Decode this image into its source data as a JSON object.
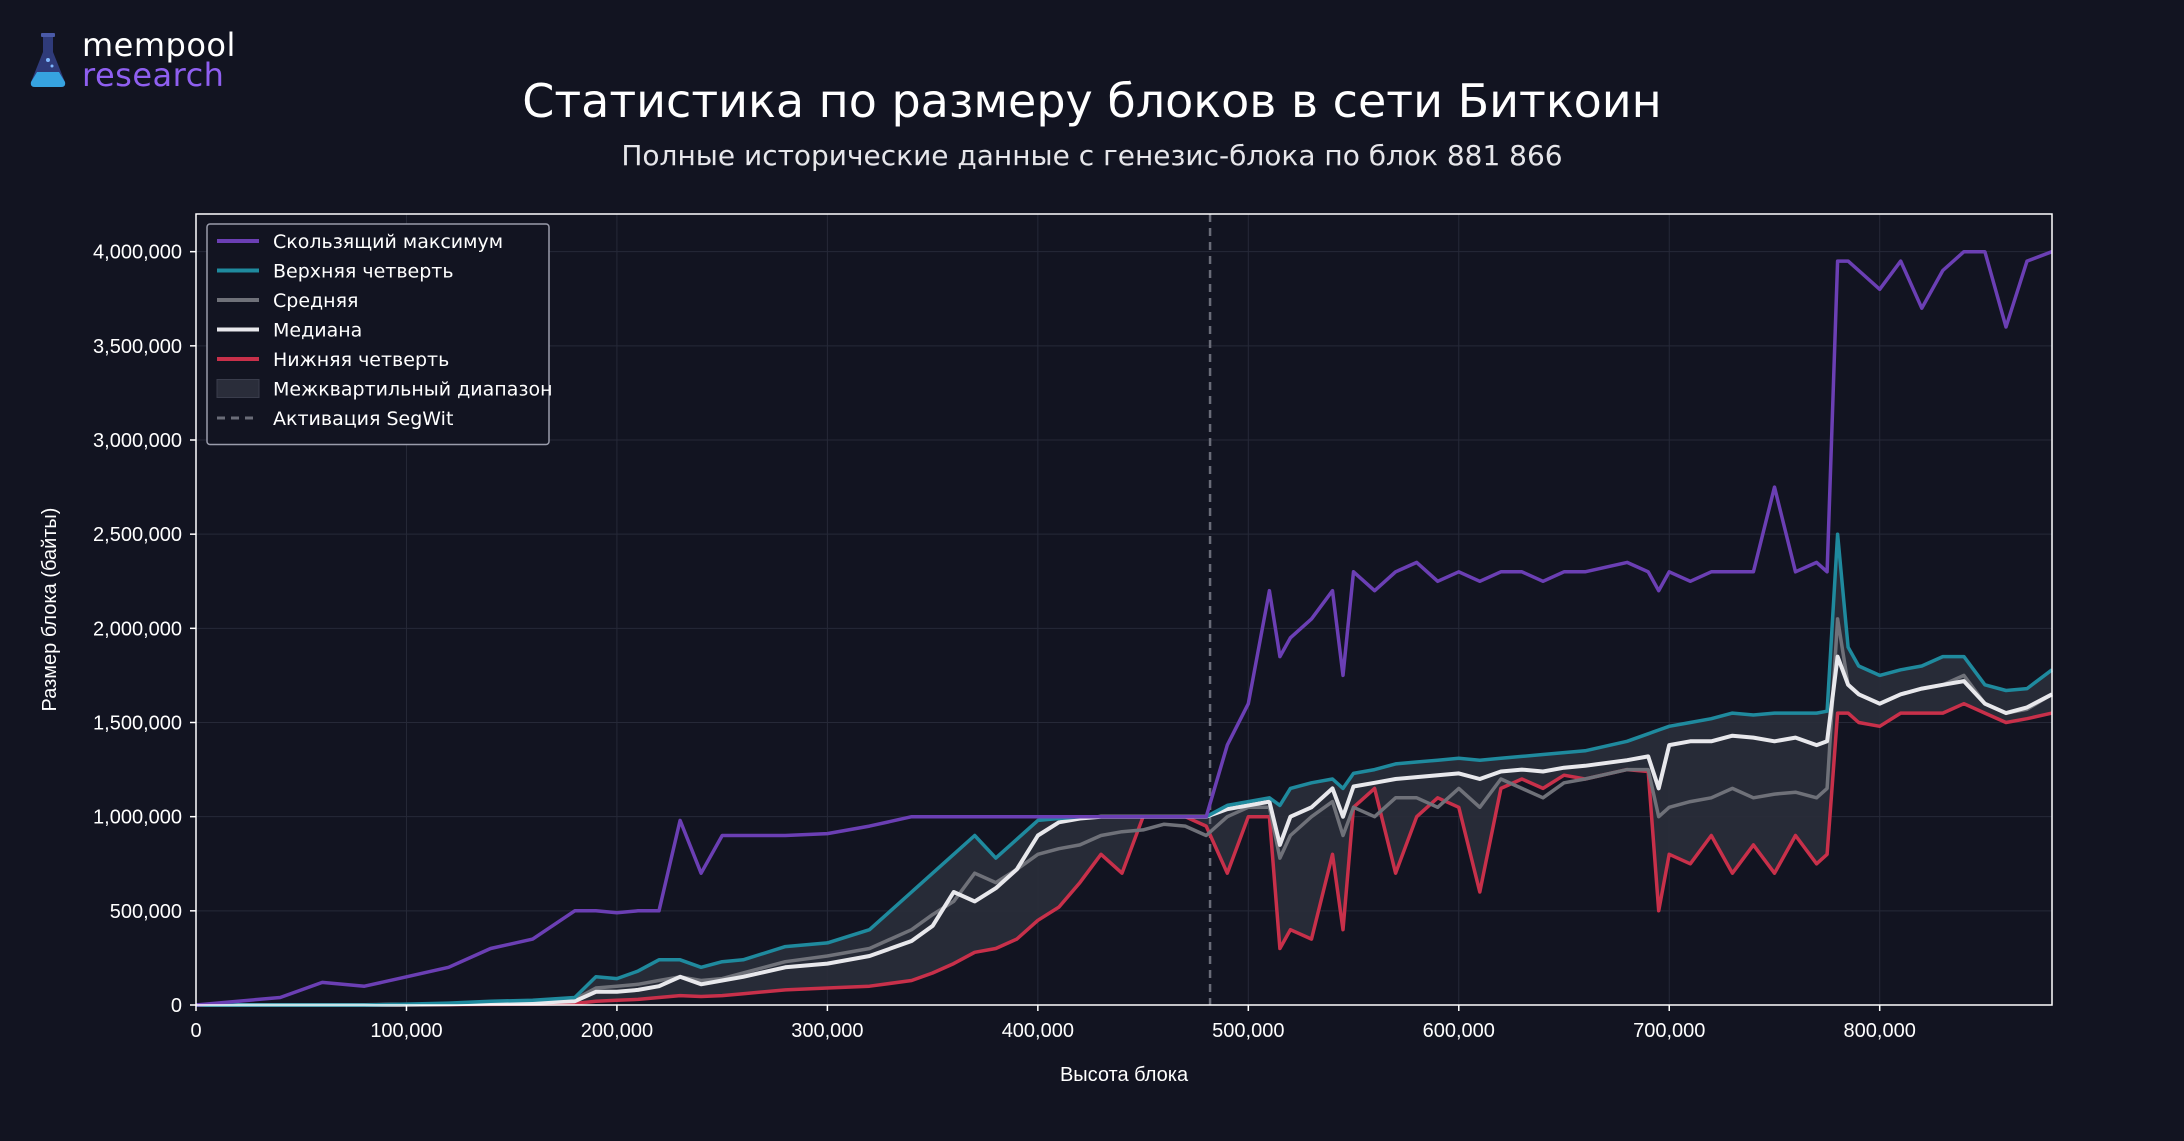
{
  "logo": {
    "top": "mempool",
    "bottom": "research",
    "icon": "flask-icon"
  },
  "chart_data": {
    "type": "line",
    "title": "Статистика по размеру блоков в сети Биткоин",
    "subtitle": "Полные исторические данные с генезис-блока по блок 881 866",
    "xlabel": "Высота блока",
    "ylabel": "Размер блока (байты)",
    "xlim": [
      0,
      881866
    ],
    "ylim": [
      0,
      4200000
    ],
    "x_ticks": [
      0,
      100000,
      200000,
      300000,
      400000,
      500000,
      600000,
      700000,
      800000
    ],
    "x_tick_labels": [
      "0",
      "100,000",
      "200,000",
      "300,000",
      "400,000",
      "500,000",
      "600,000",
      "700,000",
      "800,000"
    ],
    "y_ticks": [
      0,
      500000,
      1000000,
      1500000,
      2000000,
      2500000,
      3000000,
      3500000,
      4000000
    ],
    "y_tick_labels": [
      "0",
      "500,000",
      "1,000,000",
      "1,500,000",
      "2,000,000",
      "2,500,000",
      "3,000,000",
      "3,500,000",
      "4,000,000"
    ],
    "grid": true,
    "legend_position": "top-left",
    "segwit_activation": 481824,
    "x": [
      0,
      20000,
      40000,
      60000,
      80000,
      100000,
      120000,
      140000,
      160000,
      180000,
      190000,
      200000,
      210000,
      220000,
      230000,
      240000,
      250000,
      260000,
      280000,
      300000,
      320000,
      340000,
      350000,
      360000,
      370000,
      380000,
      390000,
      400000,
      410000,
      420000,
      430000,
      440000,
      450000,
      460000,
      470000,
      480000,
      490000,
      500000,
      510000,
      515000,
      520000,
      530000,
      540000,
      545000,
      550000,
      560000,
      570000,
      580000,
      590000,
      600000,
      610000,
      620000,
      630000,
      640000,
      650000,
      660000,
      680000,
      690000,
      695000,
      700000,
      710000,
      720000,
      730000,
      740000,
      750000,
      760000,
      770000,
      775000,
      780000,
      785000,
      790000,
      800000,
      810000,
      820000,
      830000,
      840000,
      850000,
      860000,
      870000,
      881866
    ],
    "series": [
      {
        "name": "Скользящий максимум",
        "color": "#6b3fb4",
        "values": [
          0,
          20000,
          40000,
          120000,
          100000,
          150000,
          200000,
          300000,
          350000,
          500000,
          500000,
          490000,
          500000,
          500000,
          980000,
          700000,
          900000,
          900000,
          900000,
          910000,
          950000,
          1000000,
          1000000,
          1000000,
          1000000,
          1000000,
          1000000,
          1000000,
          1000000,
          1000000,
          1000000,
          1000000,
          1000000,
          1000000,
          1000000,
          1000000,
          1380000,
          1600000,
          2200000,
          1850000,
          1950000,
          2050000,
          2200000,
          1750000,
          2300000,
          2200000,
          2300000,
          2350000,
          2250000,
          2300000,
          2250000,
          2300000,
          2300000,
          2250000,
          2300000,
          2300000,
          2350000,
          2300000,
          2200000,
          2300000,
          2250000,
          2300000,
          2300000,
          2300000,
          2750000,
          2300000,
          2350000,
          2300000,
          3950000,
          3950000,
          3900000,
          3800000,
          3950000,
          3700000,
          3900000,
          4000000,
          4000000,
          3600000,
          3950000,
          4000000
        ]
      },
      {
        "name": "Верхняя четверть",
        "color": "#1f8a9e",
        "values": [
          0,
          0,
          0,
          0,
          0,
          5000,
          10000,
          20000,
          25000,
          40000,
          150000,
          140000,
          180000,
          240000,
          240000,
          200000,
          230000,
          240000,
          310000,
          330000,
          400000,
          600000,
          700000,
          800000,
          900000,
          780000,
          880000,
          980000,
          990000,
          1000000,
          1000000,
          1000000,
          1000000,
          1000000,
          1000000,
          1000000,
          1060000,
          1080000,
          1100000,
          1060000,
          1150000,
          1180000,
          1200000,
          1150000,
          1230000,
          1250000,
          1280000,
          1290000,
          1300000,
          1310000,
          1300000,
          1310000,
          1320000,
          1330000,
          1340000,
          1350000,
          1400000,
          1440000,
          1460000,
          1480000,
          1500000,
          1520000,
          1550000,
          1540000,
          1550000,
          1550000,
          1550000,
          1560000,
          2500000,
          1900000,
          1800000,
          1750000,
          1780000,
          1800000,
          1850000,
          1850000,
          1700000,
          1670000,
          1680000,
          1780000
        ]
      },
      {
        "name": "Средняя",
        "color": "#6f7179",
        "values": [
          0,
          0,
          0,
          0,
          0,
          3000,
          6000,
          12000,
          18000,
          30000,
          90000,
          100000,
          110000,
          130000,
          150000,
          130000,
          140000,
          170000,
          230000,
          260000,
          300000,
          400000,
          480000,
          550000,
          700000,
          650000,
          720000,
          800000,
          830000,
          850000,
          900000,
          920000,
          930000,
          960000,
          950000,
          900000,
          1000000,
          1050000,
          1050000,
          780000,
          900000,
          1000000,
          1080000,
          900000,
          1050000,
          1000000,
          1100000,
          1100000,
          1050000,
          1150000,
          1050000,
          1200000,
          1150000,
          1100000,
          1180000,
          1200000,
          1250000,
          1250000,
          1000000,
          1050000,
          1080000,
          1100000,
          1150000,
          1100000,
          1120000,
          1130000,
          1100000,
          1150000,
          2050000,
          1700000,
          1650000,
          1600000,
          1650000,
          1680000,
          1700000,
          1750000,
          1600000,
          1550000,
          1570000,
          1650000
        ]
      },
      {
        "name": "Медиана",
        "color": "#e8e8ec",
        "values": [
          0,
          0,
          0,
          0,
          0,
          2000,
          4000,
          8000,
          12000,
          20000,
          70000,
          70000,
          80000,
          100000,
          150000,
          110000,
          130000,
          150000,
          200000,
          220000,
          260000,
          340000,
          420000,
          600000,
          550000,
          620000,
          720000,
          900000,
          970000,
          990000,
          1000000,
          1000000,
          1000000,
          1000000,
          1000000,
          1000000,
          1040000,
          1060000,
          1080000,
          850000,
          1000000,
          1050000,
          1150000,
          1000000,
          1160000,
          1180000,
          1200000,
          1210000,
          1220000,
          1230000,
          1200000,
          1240000,
          1250000,
          1240000,
          1260000,
          1270000,
          1300000,
          1320000,
          1150000,
          1380000,
          1400000,
          1400000,
          1430000,
          1420000,
          1400000,
          1420000,
          1380000,
          1400000,
          1850000,
          1700000,
          1650000,
          1600000,
          1650000,
          1680000,
          1700000,
          1720000,
          1600000,
          1550000,
          1580000,
          1650000
        ]
      },
      {
        "name": "Нижняя четверть",
        "color": "#c8304a",
        "values": [
          0,
          0,
          0,
          0,
          0,
          1000,
          2000,
          3000,
          5000,
          8000,
          20000,
          25000,
          30000,
          40000,
          50000,
          45000,
          50000,
          60000,
          80000,
          90000,
          100000,
          130000,
          170000,
          220000,
          280000,
          300000,
          350000,
          450000,
          520000,
          650000,
          800000,
          700000,
          1000000,
          1000000,
          1000000,
          950000,
          700000,
          1000000,
          1000000,
          300000,
          400000,
          350000,
          800000,
          400000,
          1050000,
          1150000,
          700000,
          1000000,
          1100000,
          1050000,
          600000,
          1150000,
          1200000,
          1150000,
          1220000,
          1200000,
          1250000,
          1240000,
          500000,
          800000,
          750000,
          900000,
          700000,
          850000,
          700000,
          900000,
          750000,
          800000,
          1550000,
          1550000,
          1500000,
          1480000,
          1550000,
          1550000,
          1550000,
          1600000,
          1550000,
          1500000,
          1520000,
          1550000
        ]
      }
    ],
    "legend": [
      {
        "label": "Скользящий максимум",
        "kind": "line",
        "color": "#6b3fb4"
      },
      {
        "label": "Верхняя четверть",
        "kind": "line",
        "color": "#1f8a9e"
      },
      {
        "label": "Средняя",
        "kind": "line",
        "color": "#6f7179"
      },
      {
        "label": "Медиана",
        "kind": "line",
        "color": "#e8e8ec"
      },
      {
        "label": "Нижняя четверть",
        "kind": "line",
        "color": "#c8304a"
      },
      {
        "label": "Межквартильный диапазон",
        "kind": "area",
        "color": "#2a2d3a"
      },
      {
        "label": "Активация SegWit",
        "kind": "dashed",
        "color": "#6a6c78"
      }
    ]
  }
}
